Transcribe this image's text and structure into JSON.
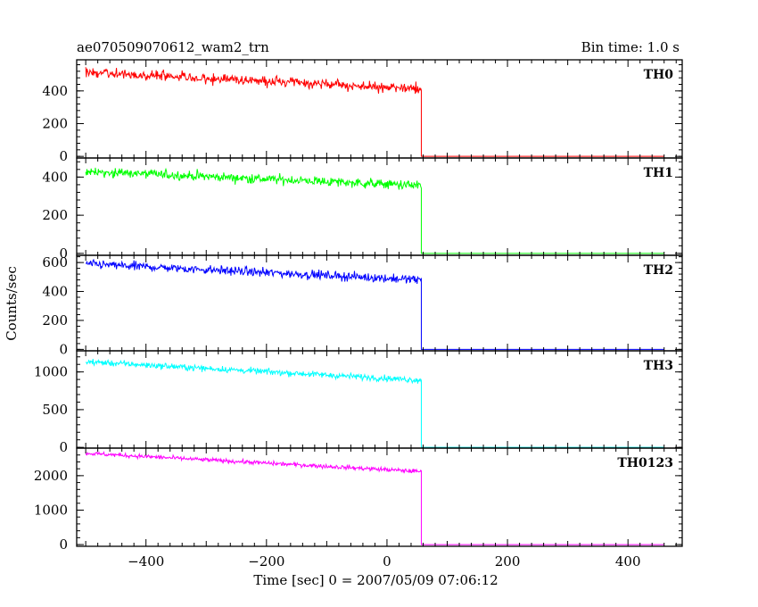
{
  "header": {
    "title": "ae070509070612_wam2_trn",
    "bin_time": "Bin time: 1.0 s"
  },
  "chart_data": {
    "type": "line",
    "title": "ae070509070612_wam2_trn",
    "subtitle": "Bin time: 1.0 s",
    "xlabel": "Time [sec] 0 = 2007/05/09 07:06:12",
    "ylabel": "Counts/sec",
    "xlim": [
      -515,
      490
    ],
    "x_ticks": [
      -400,
      -200,
      0,
      200,
      400
    ],
    "x_tick_labels": [
      "−400",
      "−200",
      "0",
      "200",
      "400"
    ],
    "drop_time": 57,
    "series": [
      {
        "name": "TH0",
        "color": "#ff0000",
        "ylim": [
          -10,
          590
        ],
        "y_ticks": [
          0,
          200,
          400
        ],
        "x_start": -500,
        "x_end": 460,
        "level_start": 515,
        "level_before_drop": 410,
        "level_after_drop": 0,
        "noise": 30
      },
      {
        "name": "TH1",
        "color": "#00ff00",
        "ylim": [
          -10,
          500
        ],
        "y_ticks": [
          0,
          200,
          400
        ],
        "x_start": -500,
        "x_end": 460,
        "level_start": 430,
        "level_before_drop": 355,
        "level_after_drop": 0,
        "noise": 25
      },
      {
        "name": "TH2",
        "color": "#0000ff",
        "ylim": [
          -10,
          650
        ],
        "y_ticks": [
          0,
          200,
          400,
          600
        ],
        "x_start": -500,
        "x_end": 460,
        "level_start": 590,
        "level_before_drop": 480,
        "level_after_drop": 0,
        "noise": 30
      },
      {
        "name": "TH3",
        "color": "#00ffff",
        "ylim": [
          -10,
          1280
        ],
        "y_ticks": [
          0,
          500,
          1000
        ],
        "x_start": -500,
        "x_end": 460,
        "level_start": 1135,
        "level_before_drop": 890,
        "level_after_drop": 0,
        "noise": 40
      },
      {
        "name": "TH0123",
        "color": "#ff00ff",
        "ylim": [
          -50,
          2800
        ],
        "y_ticks": [
          0,
          1000,
          2000
        ],
        "x_start": -500,
        "x_end": 460,
        "level_start": 2650,
        "level_before_drop": 2120,
        "level_after_drop": 0,
        "noise": 60
      }
    ]
  }
}
